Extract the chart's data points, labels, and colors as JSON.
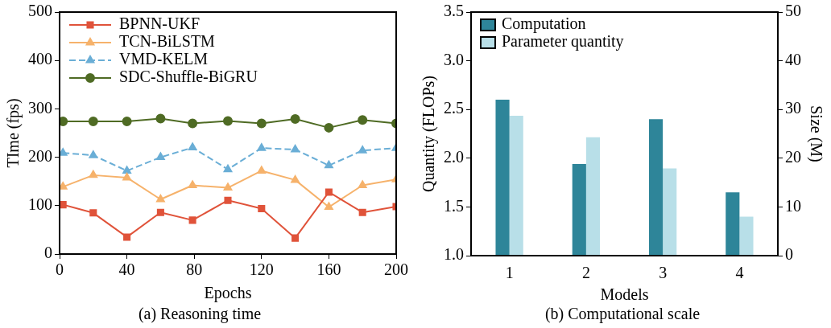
{
  "chart_data": [
    {
      "type": "line",
      "title": "(a) Reasoning time",
      "xlabel": "Epochs",
      "ylabel": "TIme (fps)",
      "x": [
        2,
        20,
        40,
        60,
        79,
        100,
        120,
        140,
        160,
        180,
        200
      ],
      "xlim": [
        0,
        200
      ],
      "xticks": [
        0,
        40,
        80,
        120,
        160,
        200
      ],
      "ylim": [
        0,
        500
      ],
      "yticks": [
        0,
        100,
        200,
        300,
        400,
        500
      ],
      "grid": false,
      "legend": "top left",
      "series": [
        {
          "name": "BPNN-UKF",
          "color": "#e0533a",
          "marker": "square",
          "line_style": "solid",
          "values": [
            102,
            85,
            35,
            86,
            70,
            111,
            94,
            33,
            128,
            86,
            98
          ]
        },
        {
          "name": "TCN-BiLSTM",
          "color": "#f6b26b",
          "marker": "triangle",
          "line_style": "solid",
          "values": [
            139,
            163,
            158,
            113,
            142,
            137,
            172,
            153,
            97,
            142,
            154
          ]
        },
        {
          "name": "VMD-KELM",
          "color": "#6aaed6",
          "marker": "triangle",
          "line_style": "dashed",
          "values": [
            209,
            204,
            172,
            200,
            220,
            175,
            219,
            216,
            183,
            214,
            219
          ]
        },
        {
          "name": "SDC-Shuffle-BiGRU",
          "color": "#4f6b24",
          "marker": "circle",
          "line_style": "solid",
          "values": [
            274,
            274,
            274,
            280,
            270,
            275,
            270,
            279,
            261,
            277,
            270
          ]
        }
      ]
    },
    {
      "type": "bar",
      "title": "(b) Computational scale",
      "xlabel": "Models",
      "ylabel": "Quantity (FLOPs)",
      "y2label": "Size (M)",
      "categories": [
        "1",
        "2",
        "3",
        "4"
      ],
      "ylim": [
        1,
        3.5
      ],
      "yticks": [
        {
          "value": 1,
          "label": "1.0"
        },
        {
          "value": 1.5,
          "label": "1.5"
        },
        {
          "value": 2,
          "label": "2.0"
        },
        {
          "value": 2.5,
          "label": "2.5"
        },
        {
          "value": 3,
          "label": "3.0"
        },
        {
          "value": 3.5,
          "label": "3.5"
        }
      ],
      "y2lim": [
        0,
        50
      ],
      "y2ticks": [
        0,
        10,
        20,
        30,
        40,
        50
      ],
      "grid": false,
      "legend": "top left",
      "series": [
        {
          "name": "Computation",
          "color": "#2e8599",
          "values": [
            2.6,
            1.94,
            2.4,
            1.65
          ]
        },
        {
          "name": "Parameter quantity",
          "color": "#b8dfe8",
          "axis": "y2",
          "values": [
            28.7,
            24.3,
            17.9,
            8.0
          ]
        }
      ]
    }
  ]
}
